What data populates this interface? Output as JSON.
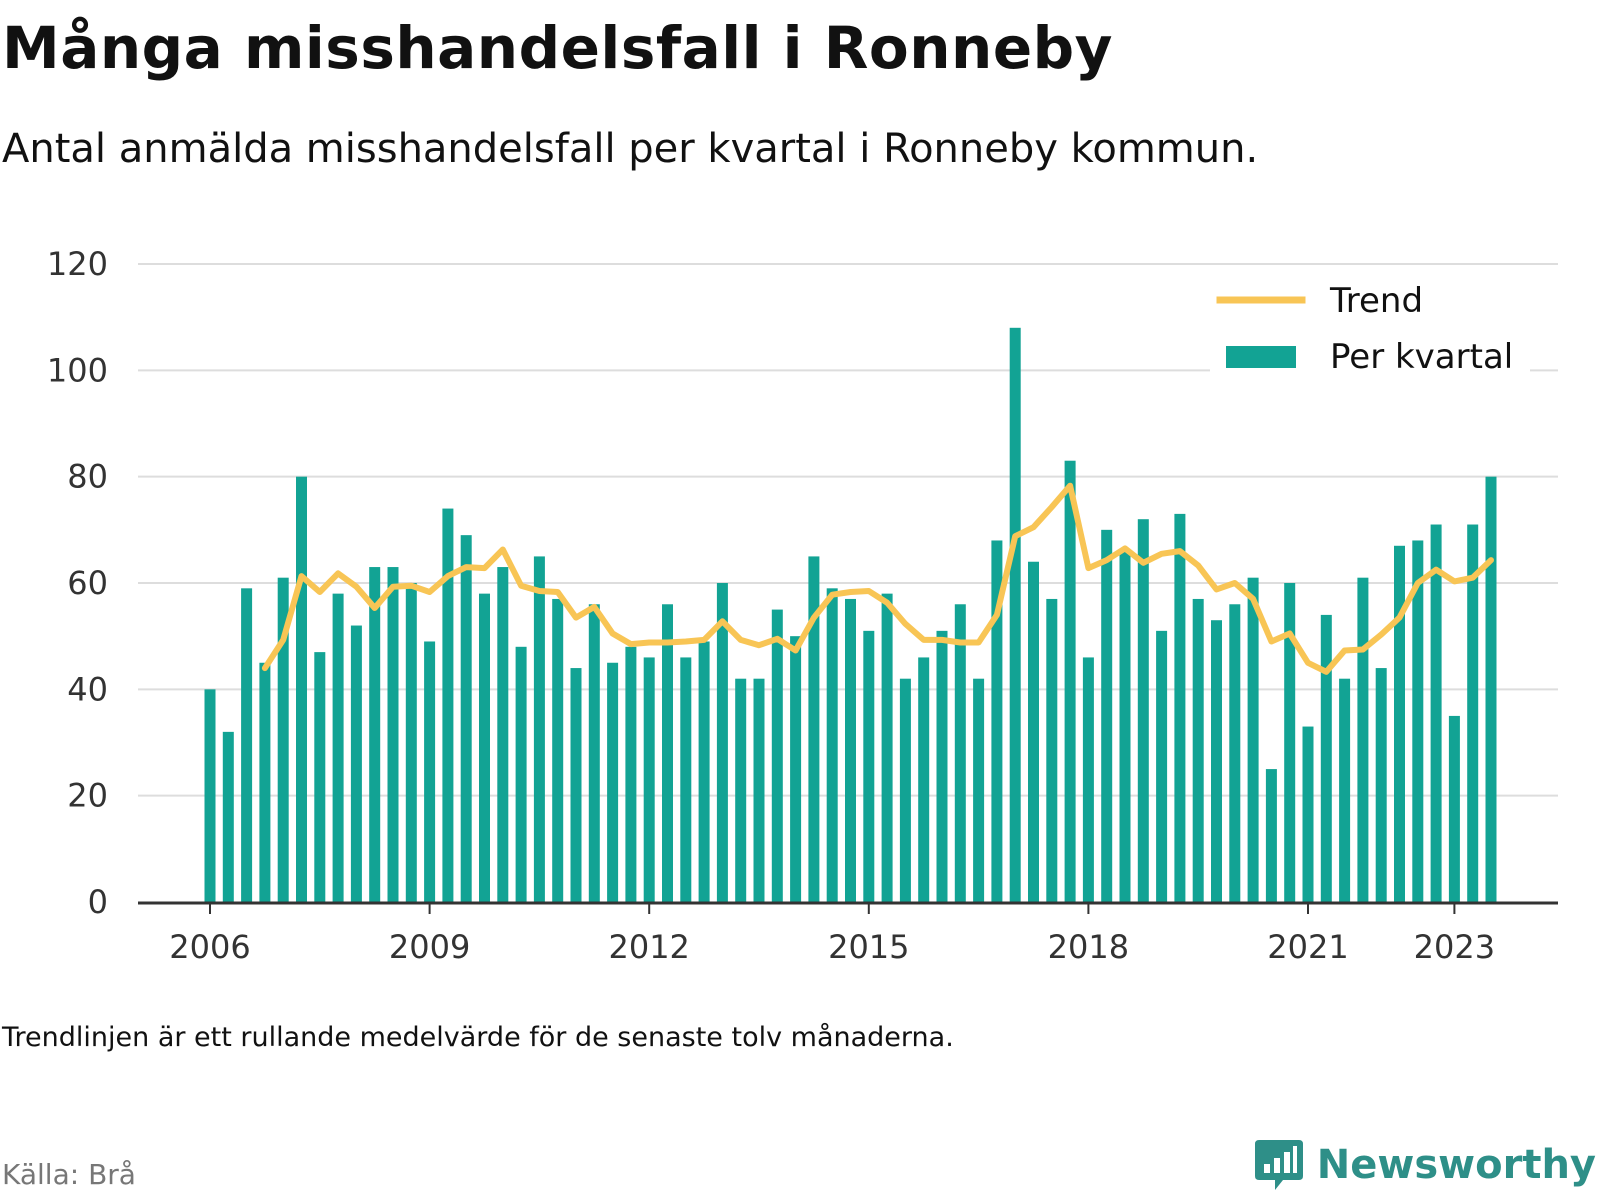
{
  "header": {
    "title": "Många misshandelsfall i Ronneby",
    "subtitle": "Antal anmälda misshandelsfall per kvartal i Ronneby kommun."
  },
  "footer": {
    "note": "Trendlinjen är ett rullande medelvärde för de senaste tolv månaderna.",
    "source": "Källa: Brå",
    "brand": "Newsworthy"
  },
  "colors": {
    "bars": "#12a394",
    "trend": "#f8c555",
    "grid": "#dddddd",
    "axis": "#333333",
    "brand": "#2e8f88"
  },
  "chart_data": {
    "type": "bar",
    "x_start": "2006 Q1",
    "x_ticks": [
      "2006",
      "2009",
      "2012",
      "2015",
      "2018",
      "2021",
      "2023"
    ],
    "y_ticks": [
      "0",
      "20",
      "40",
      "60",
      "80",
      "100",
      "120"
    ],
    "ylim": [
      0,
      120
    ],
    "grid": true,
    "legend_position": "top-right",
    "series": [
      {
        "name": "Per kvartal",
        "type": "bar",
        "values": [
          40,
          32,
          59,
          45,
          61,
          80,
          47,
          58,
          52,
          63,
          63,
          60,
          49,
          74,
          69,
          58,
          63,
          48,
          65,
          57,
          44,
          56,
          45,
          48,
          46,
          56,
          46,
          49,
          60,
          42,
          42,
          55,
          50,
          65,
          59,
          57,
          51,
          58,
          42,
          46,
          51,
          56,
          42,
          68,
          108,
          64,
          57,
          83,
          46,
          70,
          66,
          72,
          51,
          73,
          57,
          53,
          56,
          61,
          25,
          60,
          33,
          54,
          42,
          61,
          44,
          67,
          68,
          71,
          35,
          71,
          80
        ]
      },
      {
        "name": "Trend",
        "type": "line",
        "values": [
          null,
          null,
          null,
          44,
          49.3,
          61.3,
          58.3,
          61.8,
          59.3,
          55.3,
          59.3,
          59.5,
          58.3,
          61.3,
          63,
          62.8,
          66.3,
          59.5,
          58.5,
          58.3,
          53.5,
          55.5,
          50.5,
          48.5,
          48.8,
          48.8,
          49,
          49.3,
          52.8,
          49.3,
          48.3,
          49.5,
          47.3,
          53.5,
          57.8,
          58.3,
          58.5,
          56.3,
          52.3,
          49.3,
          49.3,
          48.8,
          48.8,
          54,
          68.8,
          70.5,
          74.3,
          78.3,
          62.8,
          64.3,
          66.5,
          63.8,
          65.5,
          66,
          63.3,
          58.8,
          60,
          57,
          49,
          50.5,
          45,
          43.3,
          47.3,
          47.5,
          50.3,
          53.5,
          60,
          62.5,
          60.3,
          61,
          64.3
        ]
      }
    ]
  }
}
